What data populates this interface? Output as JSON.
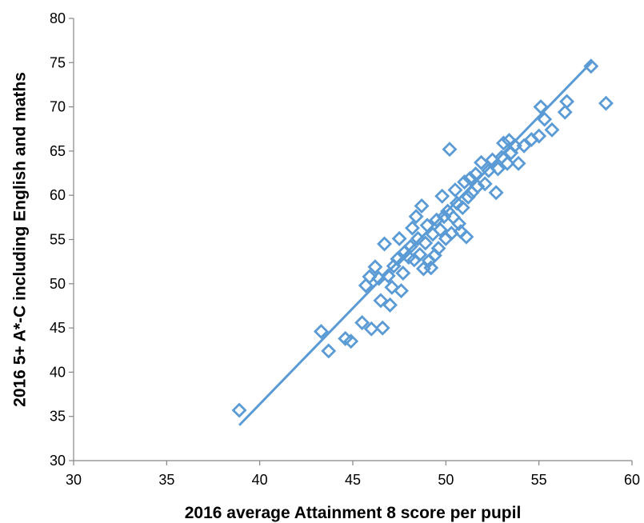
{
  "chart_data": {
    "type": "scatter",
    "title": "",
    "xlabel": "2016 average Attainment 8 score per pupil",
    "ylabel": "2016 5+ A*-C including English and maths",
    "xlim": [
      30,
      60
    ],
    "ylim": [
      30,
      80
    ],
    "x_ticks": [
      30,
      35,
      40,
      45,
      50,
      55,
      60
    ],
    "y_ticks": [
      30,
      35,
      40,
      45,
      50,
      55,
      60,
      65,
      70,
      75,
      80
    ],
    "grid": false,
    "legend": "none",
    "marker": "diamond-open",
    "color": "#5b9bd5",
    "trendline": {
      "type": "linear",
      "from": [
        38.9,
        34.0
      ],
      "to": [
        57.9,
        75.2
      ]
    },
    "points": [
      [
        38.9,
        35.7
      ],
      [
        43.3,
        44.6
      ],
      [
        43.7,
        42.4
      ],
      [
        44.6,
        43.8
      ],
      [
        44.9,
        43.5
      ],
      [
        45.5,
        45.6
      ],
      [
        45.7,
        49.8
      ],
      [
        45.9,
        50.8
      ],
      [
        46.0,
        44.9
      ],
      [
        46.2,
        51.9
      ],
      [
        46.4,
        50.6
      ],
      [
        46.5,
        48.1
      ],
      [
        46.6,
        45.0
      ],
      [
        46.7,
        54.5
      ],
      [
        46.9,
        50.9
      ],
      [
        47.0,
        47.6
      ],
      [
        47.1,
        49.6
      ],
      [
        47.2,
        52.0
      ],
      [
        47.4,
        52.8
      ],
      [
        47.5,
        55.1
      ],
      [
        47.6,
        49.2
      ],
      [
        47.7,
        51.2
      ],
      [
        47.8,
        53.6
      ],
      [
        48.0,
        53.0
      ],
      [
        48.1,
        54.2
      ],
      [
        48.2,
        56.3
      ],
      [
        48.3,
        52.7
      ],
      [
        48.4,
        57.6
      ],
      [
        48.5,
        55.1
      ],
      [
        48.6,
        53.3
      ],
      [
        48.7,
        58.8
      ],
      [
        48.8,
        51.7
      ],
      [
        48.9,
        54.6
      ],
      [
        49.0,
        56.6
      ],
      [
        49.1,
        52.6
      ],
      [
        49.2,
        51.8
      ],
      [
        49.3,
        55.6
      ],
      [
        49.4,
        53.2
      ],
      [
        49.5,
        57.2
      ],
      [
        49.6,
        54.0
      ],
      [
        49.7,
        56.1
      ],
      [
        49.8,
        59.9
      ],
      [
        49.9,
        57.6
      ],
      [
        50.0,
        55.1
      ],
      [
        50.1,
        58.2
      ],
      [
        50.2,
        65.2
      ],
      [
        50.3,
        55.7
      ],
      [
        50.4,
        57.5
      ],
      [
        50.5,
        60.6
      ],
      [
        50.6,
        59.1
      ],
      [
        50.7,
        56.8
      ],
      [
        50.8,
        55.9
      ],
      [
        50.9,
        58.6
      ],
      [
        51.0,
        61.5
      ],
      [
        51.1,
        55.3
      ],
      [
        51.2,
        59.8
      ],
      [
        51.3,
        61.9
      ],
      [
        51.4,
        60.3
      ],
      [
        51.6,
        62.4
      ],
      [
        51.7,
        61.0
      ],
      [
        51.9,
        63.7
      ],
      [
        52.1,
        61.3
      ],
      [
        52.3,
        62.8
      ],
      [
        52.5,
        64.0
      ],
      [
        52.7,
        60.3
      ],
      [
        52.8,
        63.0
      ],
      [
        53.0,
        64.3
      ],
      [
        53.1,
        65.9
      ],
      [
        53.3,
        63.6
      ],
      [
        53.4,
        66.2
      ],
      [
        53.5,
        64.8
      ],
      [
        53.7,
        65.6
      ],
      [
        53.9,
        63.6
      ],
      [
        54.2,
        65.6
      ],
      [
        54.6,
        66.3
      ],
      [
        55.0,
        66.7
      ],
      [
        55.1,
        70.0
      ],
      [
        55.3,
        68.6
      ],
      [
        55.7,
        67.4
      ],
      [
        56.4,
        69.4
      ],
      [
        56.5,
        70.6
      ],
      [
        57.8,
        74.6
      ],
      [
        58.6,
        70.4
      ]
    ]
  }
}
